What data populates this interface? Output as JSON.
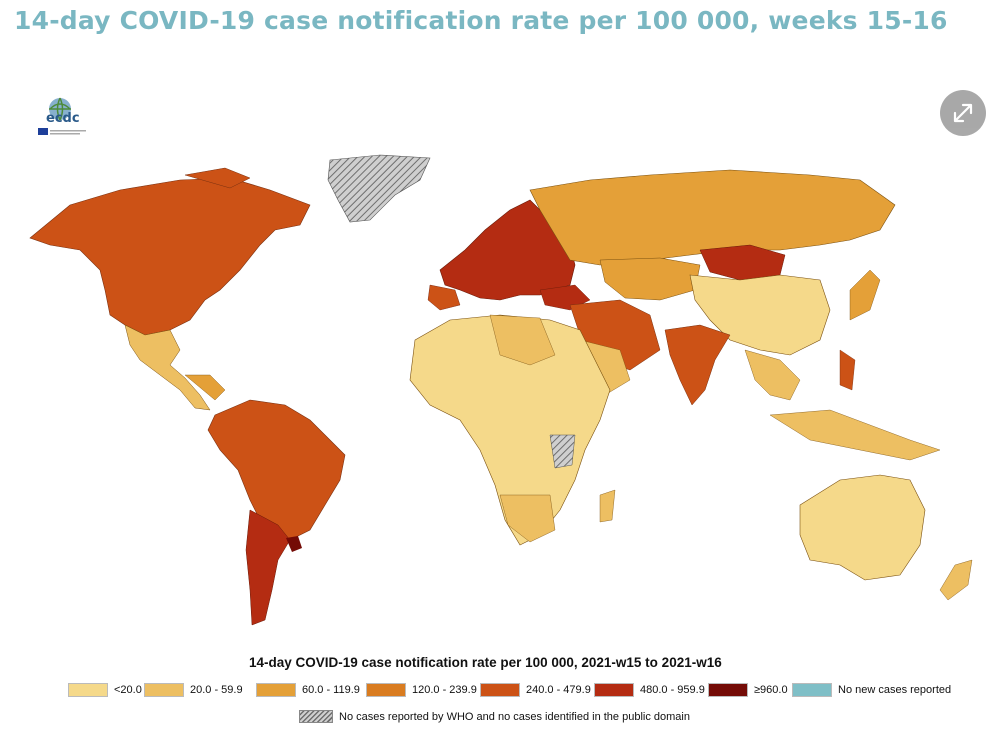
{
  "header": {
    "title": "14-day COVID-19 case notification rate per 100 000, weeks 15-16"
  },
  "logo": {
    "text": "ecdc",
    "icon": "ecdc-logo"
  },
  "expand_button": {
    "icon": "expand-arrows-icon"
  },
  "legend": {
    "title": "14-day COVID-19 case notification rate per 100 000, 2021-w15 to 2021-w16",
    "classes": [
      {
        "label": "<20.0",
        "color": "#f5d98a"
      },
      {
        "label": "20.0 - 59.9",
        "color": "#edbf62"
      },
      {
        "label": "60.0 - 119.9",
        "color": "#e4a038"
      },
      {
        "label": "120.0 - 239.9",
        "color": "#d97c20"
      },
      {
        "label": "240.0 - 479.9",
        "color": "#cc5216"
      },
      {
        "label": "480.0 - 959.9",
        "color": "#b42c12"
      },
      {
        "label": "≥960.0",
        "color": "#740b06"
      },
      {
        "label": "No new cases reported",
        "color": "#7fbfc7"
      }
    ],
    "no_data": {
      "label": "No cases reported by WHO and no cases identified in the public domain",
      "pattern": "grey-hatched"
    }
  },
  "map": {
    "regions": [
      {
        "name": "North America",
        "class": "240.0 - 479.9"
      },
      {
        "name": "Greenland",
        "class": "no-data"
      },
      {
        "name": "Mexico",
        "class": "20.0 - 59.9"
      },
      {
        "name": "South America",
        "class": "240.0 - 479.9"
      },
      {
        "name": "Argentina",
        "class": "480.0 - 959.9"
      },
      {
        "name": "Uruguay",
        "class": "≥960.0"
      },
      {
        "name": "Europe",
        "class": "480.0 - 959.9"
      },
      {
        "name": "Russia",
        "class": "60.0 - 119.9"
      },
      {
        "name": "Africa",
        "class": "<20.0"
      },
      {
        "name": "China",
        "class": "<20.0"
      },
      {
        "name": "Mongolia",
        "class": "480.0 - 959.9"
      },
      {
        "name": "India",
        "class": "240.0 - 479.9"
      },
      {
        "name": "Australia",
        "class": "<20.0"
      }
    ]
  }
}
